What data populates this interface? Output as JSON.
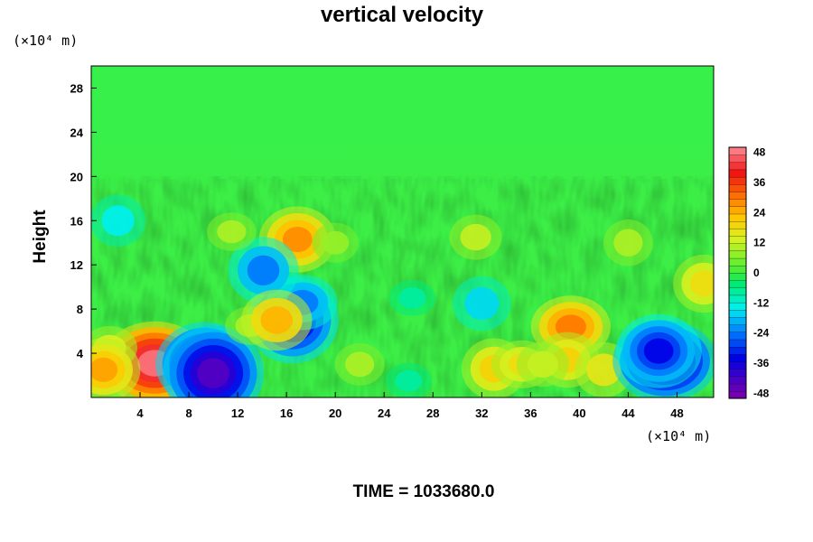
{
  "chart_data": {
    "type": "heatmap",
    "title": "vertical velocity",
    "ylabel": "Height",
    "x_unit": "(×10⁴ m)",
    "y_unit": "(×10⁴ m)",
    "xlim": [
      0,
      51
    ],
    "ylim": [
      0,
      30
    ],
    "x_ticks": [
      "4",
      "8",
      "12",
      "16",
      "20",
      "24",
      "28",
      "32",
      "36",
      "40",
      "44",
      "48"
    ],
    "y_ticks": [
      "4",
      "8",
      "12",
      "16",
      "20",
      "24",
      "28"
    ],
    "colorbar": {
      "range": [
        -50,
        50
      ],
      "ticks": [
        "48",
        "36",
        "24",
        "12",
        "0",
        "-12",
        "-24",
        "-36",
        "-48"
      ]
    },
    "background_value": 0,
    "features": [
      {
        "x": 5.2,
        "y": 3.1,
        "value": 48
      },
      {
        "x": 9.3,
        "y": 3.0,
        "value": -42
      },
      {
        "x": 10.0,
        "y": 2.2,
        "value": -44
      },
      {
        "x": 1.5,
        "y": 4.5,
        "value": 14
      },
      {
        "x": 1.0,
        "y": 2.5,
        "value": 26
      },
      {
        "x": 16.5,
        "y": 7.0,
        "value": -38
      },
      {
        "x": 17.3,
        "y": 8.6,
        "value": -24
      },
      {
        "x": 16.9,
        "y": 14.3,
        "value": 28
      },
      {
        "x": 14.1,
        "y": 11.5,
        "value": -24
      },
      {
        "x": 13.0,
        "y": 6.5,
        "value": 10
      },
      {
        "x": 15.2,
        "y": 7.0,
        "value": 24
      },
      {
        "x": 2.2,
        "y": 16.0,
        "value": -14
      },
      {
        "x": 39.3,
        "y": 6.4,
        "value": 30
      },
      {
        "x": 39.0,
        "y": 3.4,
        "value": 20
      },
      {
        "x": 33.0,
        "y": 2.6,
        "value": 20
      },
      {
        "x": 35.3,
        "y": 3.0,
        "value": 18
      },
      {
        "x": 37.0,
        "y": 3.0,
        "value": 12
      },
      {
        "x": 42.0,
        "y": 2.5,
        "value": 16
      },
      {
        "x": 47.0,
        "y": 3.3,
        "value": -46
      },
      {
        "x": 46.5,
        "y": 4.2,
        "value": -34
      },
      {
        "x": 32.0,
        "y": 8.5,
        "value": -16
      },
      {
        "x": 26.0,
        "y": 1.5,
        "value": -8
      },
      {
        "x": 31.5,
        "y": 14.5,
        "value": 12
      },
      {
        "x": 50.2,
        "y": 10.3,
        "value": 18
      },
      {
        "x": 26.3,
        "y": 9.0,
        "value": -8
      },
      {
        "x": 20.0,
        "y": 14.0,
        "value": 8
      },
      {
        "x": 44.0,
        "y": 14.0,
        "value": 10
      },
      {
        "x": 11.5,
        "y": 15.0,
        "value": 10
      },
      {
        "x": 22.0,
        "y": 3.0,
        "value": 10
      }
    ]
  },
  "time_label": "TIME = 1033680.0"
}
